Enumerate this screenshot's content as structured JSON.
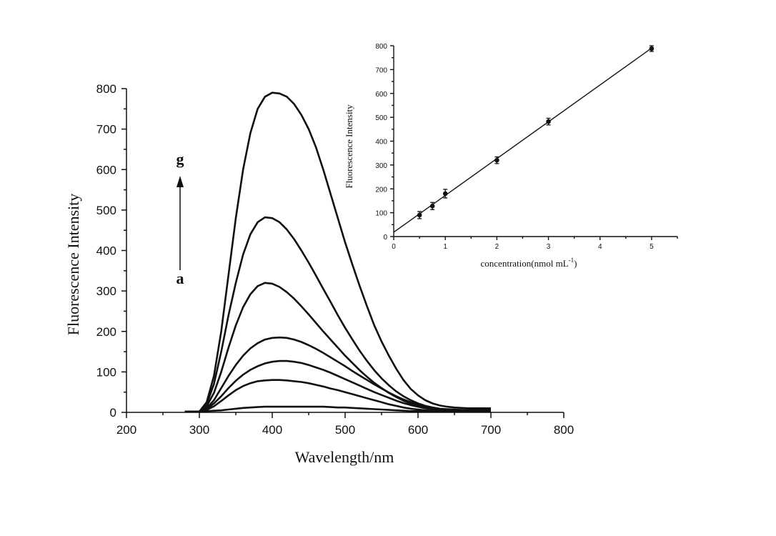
{
  "chart_data": [
    {
      "type": "line",
      "title": "",
      "xlabel": "Wavelength/nm",
      "ylabel": "Fluorescence Intensity",
      "xlim": [
        200,
        800
      ],
      "ylim": [
        0,
        800
      ],
      "x_ticks": [
        "200",
        "300",
        "400",
        "500",
        "600",
        "700",
        "800"
      ],
      "y_ticks": [
        "0",
        "100",
        "200",
        "300",
        "400",
        "500",
        "600",
        "700",
        "800"
      ],
      "x": [
        280,
        300,
        310,
        320,
        330,
        340,
        350,
        360,
        370,
        380,
        390,
        400,
        410,
        420,
        430,
        440,
        450,
        460,
        470,
        480,
        490,
        500,
        510,
        520,
        530,
        540,
        550,
        560,
        570,
        580,
        590,
        600,
        610,
        620,
        630,
        640,
        650,
        660,
        670,
        680,
        690,
        700
      ],
      "series": [
        {
          "values": [
            2,
            2,
            3,
            4,
            5,
            7,
            9,
            11,
            12,
            13,
            14,
            14,
            14,
            14,
            14,
            14,
            14,
            14,
            14,
            13,
            12,
            12,
            11,
            10,
            9,
            8,
            7,
            6,
            5,
            4,
            3,
            3,
            2,
            2,
            2,
            2,
            2,
            2,
            2,
            2,
            2,
            2
          ]
        },
        {
          "values": [
            2,
            2,
            6,
            15,
            28,
            42,
            55,
            65,
            72,
            77,
            79,
            80,
            80,
            79,
            77,
            75,
            72,
            68,
            64,
            59,
            55,
            50,
            45,
            40,
            35,
            30,
            25,
            20,
            16,
            12,
            9,
            7,
            5,
            4,
            3,
            3,
            2,
            2,
            2,
            2,
            2,
            2
          ]
        },
        {
          "values": [
            2,
            2,
            8,
            22,
            40,
            60,
            78,
            93,
            105,
            114,
            121,
            125,
            127,
            127,
            125,
            122,
            117,
            111,
            105,
            98,
            90,
            82,
            74,
            66,
            58,
            50,
            43,
            36,
            29,
            23,
            18,
            14,
            10,
            8,
            6,
            5,
            4,
            3,
            3,
            3,
            3,
            3
          ]
        },
        {
          "values": [
            2,
            2,
            10,
            30,
            60,
            90,
            117,
            140,
            158,
            171,
            180,
            184,
            185,
            184,
            180,
            174,
            166,
            157,
            147,
            136,
            125,
            114,
            102,
            91,
            80,
            69,
            59,
            49,
            40,
            32,
            25,
            19,
            14,
            11,
            8,
            6,
            5,
            4,
            4,
            3,
            3,
            3
          ]
        },
        {
          "values": [
            2,
            2,
            15,
            48,
            100,
            160,
            215,
            260,
            292,
            312,
            320,
            318,
            310,
            297,
            281,
            262,
            242,
            221,
            200,
            180,
            160,
            140,
            122,
            104,
            88,
            73,
            60,
            48,
            38,
            29,
            22,
            16,
            12,
            9,
            7,
            6,
            5,
            5,
            4,
            4,
            4,
            4
          ]
        },
        {
          "values": [
            2,
            2,
            20,
            70,
            150,
            240,
            320,
            390,
            440,
            470,
            482,
            480,
            470,
            452,
            428,
            400,
            370,
            338,
            305,
            273,
            240,
            209,
            180,
            152,
            127,
            104,
            84,
            67,
            52,
            40,
            30,
            22,
            16,
            12,
            9,
            8,
            7,
            6,
            6,
            6,
            6,
            6
          ]
        },
        {
          "values": [
            2,
            2,
            25,
            90,
            200,
            340,
            480,
            600,
            690,
            750,
            780,
            790,
            788,
            780,
            762,
            735,
            700,
            655,
            600,
            540,
            480,
            420,
            365,
            312,
            262,
            215,
            175,
            140,
            108,
            80,
            58,
            42,
            30,
            22,
            17,
            14,
            12,
            11,
            10,
            10,
            10,
            10
          ]
        }
      ],
      "arrow": {
        "from_label": "a",
        "to_label": "g"
      }
    },
    {
      "type": "scatter",
      "title": "",
      "xlabel": "concentration(nmol mL",
      "xlabel_superscript": "-1",
      "xlabel_suffix": ")",
      "ylabel": "Fluorescence Intensity",
      "xlim": [
        0,
        5.5
      ],
      "ylim": [
        0,
        800
      ],
      "x_ticks": [
        "0",
        "1",
        "2",
        "3",
        "4",
        "5"
      ],
      "y_ticks": [
        "0",
        "100",
        "200",
        "300",
        "400",
        "500",
        "600",
        "700",
        "800"
      ],
      "points": [
        {
          "x": 0.5,
          "y": 90,
          "err": 15
        },
        {
          "x": 0.75,
          "y": 128,
          "err": 15
        },
        {
          "x": 1,
          "y": 180,
          "err": 18
        },
        {
          "x": 2,
          "y": 320,
          "err": 14
        },
        {
          "x": 3,
          "y": 482,
          "err": 14
        },
        {
          "x": 5,
          "y": 788,
          "err": 12
        }
      ],
      "fit_line": {
        "x": [
          0,
          5
        ],
        "y": [
          18,
          790
        ]
      }
    }
  ]
}
